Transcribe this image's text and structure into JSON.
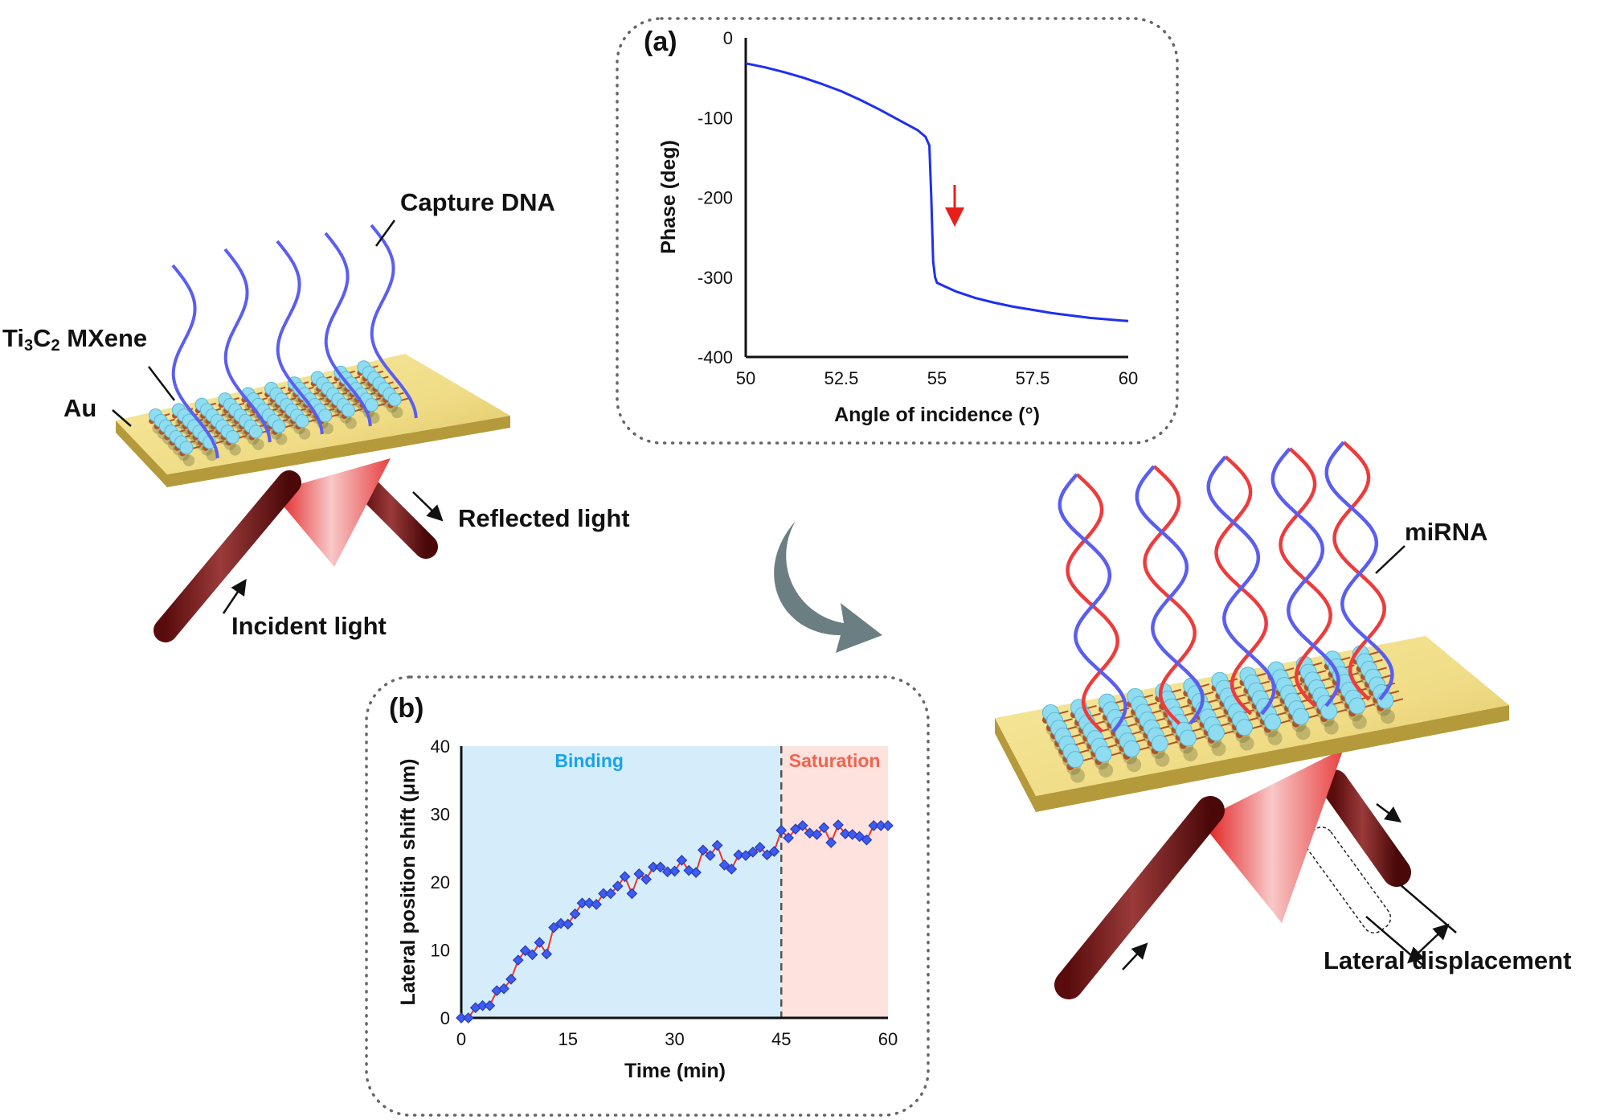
{
  "labels": {
    "capture_dna": "Capture DNA",
    "mxene_main": "Ti",
    "mxene_sub1": "3",
    "mxene_c": "C",
    "mxene_sub2": "2",
    "mxene_rest": " MXene",
    "au": "Au",
    "reflected_light": "Reflected light",
    "incident_light": "Incident light",
    "mirna": "miRNA",
    "lateral_displacement": "Lateral  displacement"
  },
  "colors": {
    "gold_plate": "#e8d27a",
    "capture_dna": "#5a5ef0",
    "mirna_strand": "#ee3b3b",
    "mxene_atoms": "#8fdcf0",
    "mxene_bonds": "#b0522a",
    "light_beam": "#7a1a1a",
    "transition_arrow": "#6b7f82"
  },
  "chart_data": [
    {
      "type": "line",
      "panel_label": "(a)",
      "xlabel": "Angle of incidence (°)",
      "ylabel": "Phase (deg)",
      "xlim": [
        50,
        60
      ],
      "ylim": [
        -400,
        0
      ],
      "xticks": [
        "50",
        "52.5",
        "55",
        "57.5",
        "60"
      ],
      "yticks": [
        "0",
        "-100",
        "-200",
        "-300",
        "-400"
      ],
      "grid": false,
      "line_color": "#1f2ff0",
      "annotation": "red downward arrow near phase jump",
      "x": [
        50,
        50.5,
        51,
        51.5,
        52,
        52.5,
        53,
        53.5,
        54,
        54.5,
        54.7,
        54.8,
        54.85,
        54.9,
        54.95,
        55,
        55.5,
        56,
        56.5,
        57,
        57.5,
        58,
        58.5,
        59,
        59.5,
        60
      ],
      "y": [
        -32,
        -37,
        -43,
        -50,
        -58,
        -67,
        -78,
        -90,
        -103,
        -116,
        -124,
        -135,
        -200,
        -280,
        -300,
        -307,
        -318,
        -326,
        -332,
        -337,
        -341,
        -345,
        -348,
        -351,
        -353,
        -355
      ]
    },
    {
      "type": "line",
      "panel_label": "(b)",
      "xlabel": "Time (min)",
      "ylabel": "Lateral position shift (μm)",
      "xlim": [
        0,
        60
      ],
      "ylim": [
        0,
        40
      ],
      "xticks": [
        "0",
        "15",
        "30",
        "45",
        "60"
      ],
      "yticks": [
        "0",
        "10",
        "20",
        "30",
        "40"
      ],
      "grid": false,
      "regions": [
        {
          "label": "Binding",
          "from": 0,
          "to": 45,
          "color": "#d5edfb",
          "text_color": "#17a2f2"
        },
        {
          "label": "Saturation",
          "from": 45,
          "to": 60,
          "color": "#fde2de",
          "text_color": "#f2634f"
        }
      ],
      "divider_x": 45,
      "line_color": "#e8352a",
      "marker_color": "#3d5cf2",
      "x": [
        0,
        1,
        2,
        3,
        4,
        5,
        6,
        7,
        8,
        9,
        10,
        11,
        12,
        13,
        14,
        15,
        16,
        17,
        18,
        19,
        20,
        21,
        22,
        23,
        24,
        25,
        26,
        27,
        28,
        29,
        30,
        31,
        32,
        33,
        34,
        35,
        36,
        37,
        38,
        39,
        40,
        41,
        42,
        43,
        44,
        45,
        46,
        47,
        48,
        49,
        50,
        51,
        52,
        53,
        54,
        55,
        56,
        57,
        58,
        59,
        60
      ],
      "y": [
        0,
        0,
        1.5,
        1.8,
        1.8,
        4.0,
        4.3,
        5.7,
        8.5,
        9.9,
        9.3,
        11.1,
        9.4,
        13.3,
        13.9,
        13.8,
        15.3,
        16.9,
        16.9,
        16.7,
        18.3,
        18.3,
        19.4,
        20.8,
        18.3,
        21.2,
        20.4,
        22.2,
        22.2,
        21.5,
        21.6,
        23.2,
        21.7,
        21.4,
        24.7,
        23.9,
        25.4,
        22.5,
        21.9,
        24.0,
        23.9,
        24.4,
        25.1,
        24.0,
        24.5,
        27.6,
        26.5,
        27.8,
        28.3,
        27.2,
        27.0,
        28.0,
        25.8,
        28.4,
        27.1,
        27.0,
        26.7,
        26.2,
        28.3,
        28.3,
        28.3
      ]
    }
  ]
}
